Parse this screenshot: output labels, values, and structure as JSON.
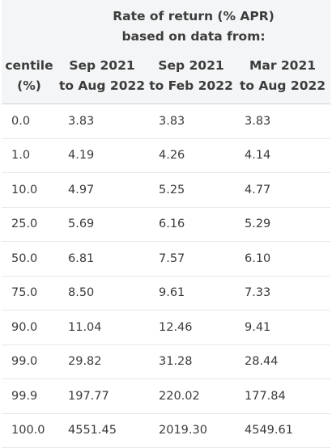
{
  "table": {
    "group_header": {
      "line1": "Rate of return (% APR)",
      "line2": "based on data from:"
    },
    "columns": [
      {
        "line1": "centile",
        "line2": "(%)"
      },
      {
        "line1": "Sep 2021",
        "line2": "to Aug 2022"
      },
      {
        "line1": "Sep 2021",
        "line2": "to Feb 2022"
      },
      {
        "line1": "Mar 2021",
        "line2": "to Aug 2022"
      }
    ],
    "rows": [
      [
        "0.0",
        "3.83",
        "3.83",
        "3.83"
      ],
      [
        "1.0",
        "4.19",
        "4.26",
        "4.14"
      ],
      [
        "10.0",
        "4.97",
        "5.25",
        "4.77"
      ],
      [
        "25.0",
        "5.69",
        "6.16",
        "5.29"
      ],
      [
        "50.0",
        "6.81",
        "7.57",
        "6.10"
      ],
      [
        "75.0",
        "8.50",
        "9.61",
        "7.33"
      ],
      [
        "90.0",
        "11.04",
        "12.46",
        "9.41"
      ],
      [
        "99.0",
        "29.82",
        "31.28",
        "28.44"
      ],
      [
        "99.9",
        "197.77",
        "220.02",
        "177.84"
      ],
      [
        "100.0",
        "4551.45",
        "2019.30",
        "4549.61"
      ]
    ]
  }
}
